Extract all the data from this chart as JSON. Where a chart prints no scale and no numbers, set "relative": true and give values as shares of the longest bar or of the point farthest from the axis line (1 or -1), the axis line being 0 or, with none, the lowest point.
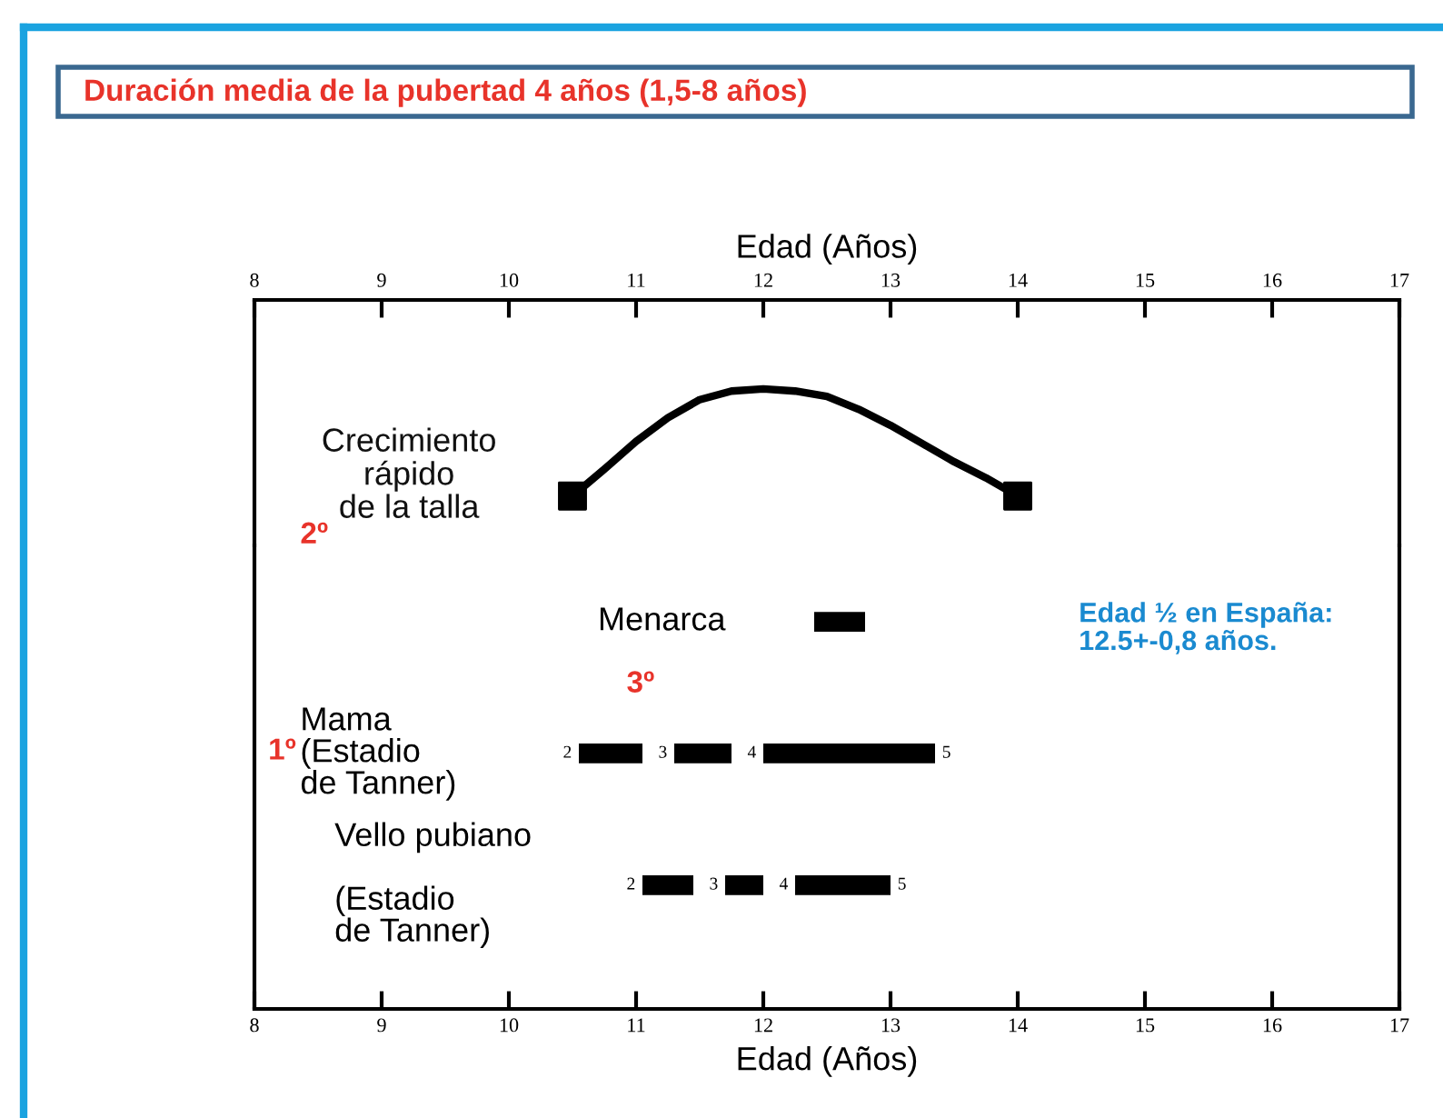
{
  "chart_data": [
    {
      "type": "line",
      "title": "Duración media de la pubertad 4 años (1,5-8 años)",
      "xlabel": "Edad (Años)",
      "xlim": [
        8,
        17
      ],
      "xticks": [
        8,
        9,
        10,
        11,
        12,
        13,
        14,
        15,
        16,
        17
      ],
      "relative": true,
      "tick_labels": "x",
      "annotations": [
        "Crecimiento\nrápido\nde la talla",
        "2º"
      ],
      "series": [
        {
          "type": "line",
          "color": "#000000",
          "x": [
            10.5,
            10.75,
            11.0,
            11.25,
            11.5,
            11.75,
            12.0,
            12.25,
            12.5,
            12.75,
            13.0,
            13.25,
            13.5,
            13.75,
            14.0
          ],
          "values": [
            0,
            0.25,
            0.51,
            0.73,
            0.9,
            0.98,
            1,
            0.98,
            0.93,
            0.81,
            0.66,
            0.49,
            0.32,
            0.17,
            0
          ]
        },
        {
          "type": "scatter",
          "marker": "square",
          "color": "#000000",
          "x": [
            10.5,
            14.0
          ],
          "values": [
            0,
            0
          ]
        }
      ]
    },
    {
      "type": "bar",
      "orientation": "horizontal",
      "xlabel": "Edad (Años)",
      "xlim": [
        8,
        17
      ],
      "xticks": [
        8,
        9,
        10,
        11,
        12,
        13,
        14,
        15,
        16,
        17
      ],
      "categories": [
        "Menarca",
        "Mama\n(Estadio\nde Tanner)",
        "Vello pubiano\n\n(Estadio\nde Tanner)"
      ],
      "series": [
        {
          "color": "#000000",
          "base": [
            12.4,
            null,
            null
          ],
          "values": [
            0.4,
            null,
            null
          ]
        },
        {
          "color": "#000000",
          "base": [
            null,
            10.55,
            11.05
          ],
          "values": [
            null,
            0.5,
            0.4
          ]
        },
        {
          "color": "#000000",
          "base": [
            null,
            11.3,
            11.7
          ],
          "values": [
            null,
            0.45,
            0.3
          ]
        },
        {
          "color": "#000000",
          "base": [
            null,
            12.0,
            12.25
          ],
          "values": [
            null,
            1.35,
            0.75
          ]
        }
      ],
      "annotations": [
        "2",
        "3",
        "4",
        "5",
        "2",
        "3",
        "4",
        "5",
        "3º",
        "1º",
        "Edad ½ en España:\n12.5+-0,8 años."
      ]
    }
  ]
}
